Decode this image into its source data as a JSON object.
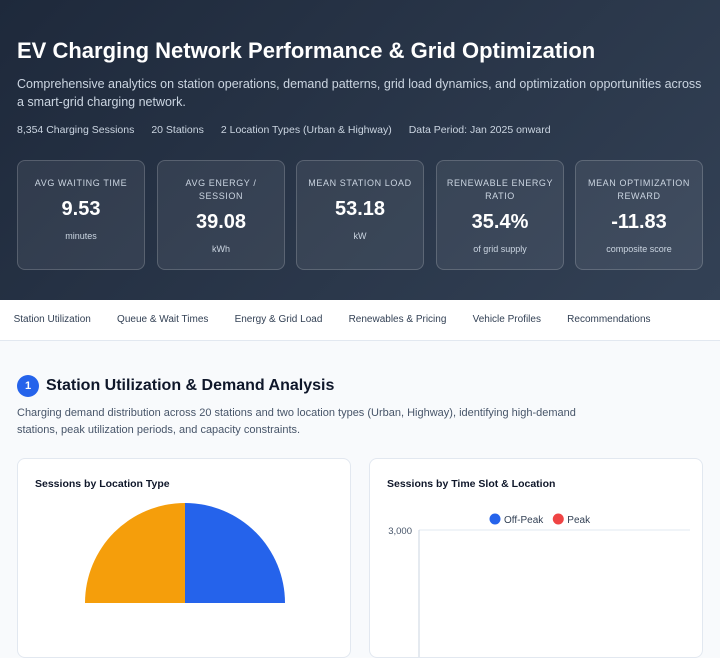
{
  "header": {
    "title": "EV Charging Network Performance & Grid Optimization",
    "subtitle": "Comprehensive analytics on station operations, demand patterns, grid load dynamics, and optimization opportunities across a smart-grid charging network.",
    "meta": [
      "8,354 Charging Sessions",
      "20 Stations",
      "2 Location Types (Urban & Highway)",
      "Data Period: Jan 2025 onward"
    ]
  },
  "kpis": [
    {
      "label": "AVG WAITING TIME",
      "value": "9.53",
      "unit": "minutes"
    },
    {
      "label": "AVG ENERGY / SESSION",
      "value": "39.08",
      "unit": "kWh"
    },
    {
      "label": "MEAN STATION LOAD",
      "value": "53.18",
      "unit": "kW"
    },
    {
      "label": "RENEWABLE ENERGY RATIO",
      "value": "35.4%",
      "unit": "of grid supply"
    },
    {
      "label": "MEAN OPTIMIZATION REWARD",
      "value": "-11.83",
      "unit": "composite score"
    }
  ],
  "tabs": [
    "Station Utilization",
    "Queue & Wait Times",
    "Energy & Grid Load",
    "Renewables & Pricing",
    "Vehicle Profiles",
    "Recommendations"
  ],
  "section": {
    "number": "1",
    "title": "Station Utilization & Demand Analysis",
    "description": "Charging demand distribution across 20 stations and two location types (Urban, Highway), identifying high-demand stations, peak utilization periods, and capacity constraints."
  },
  "panels": [
    {
      "title": "Sessions by Location Type"
    },
    {
      "title": "Sessions by Time Slot & Location",
      "legend": [
        {
          "name": "Off-Peak",
          "color": "#2563eb"
        },
        {
          "name": "Peak",
          "color": "#ef4444"
        }
      ],
      "yticks": [
        {
          "value": 3000,
          "label": "3,000"
        }
      ]
    }
  ]
}
